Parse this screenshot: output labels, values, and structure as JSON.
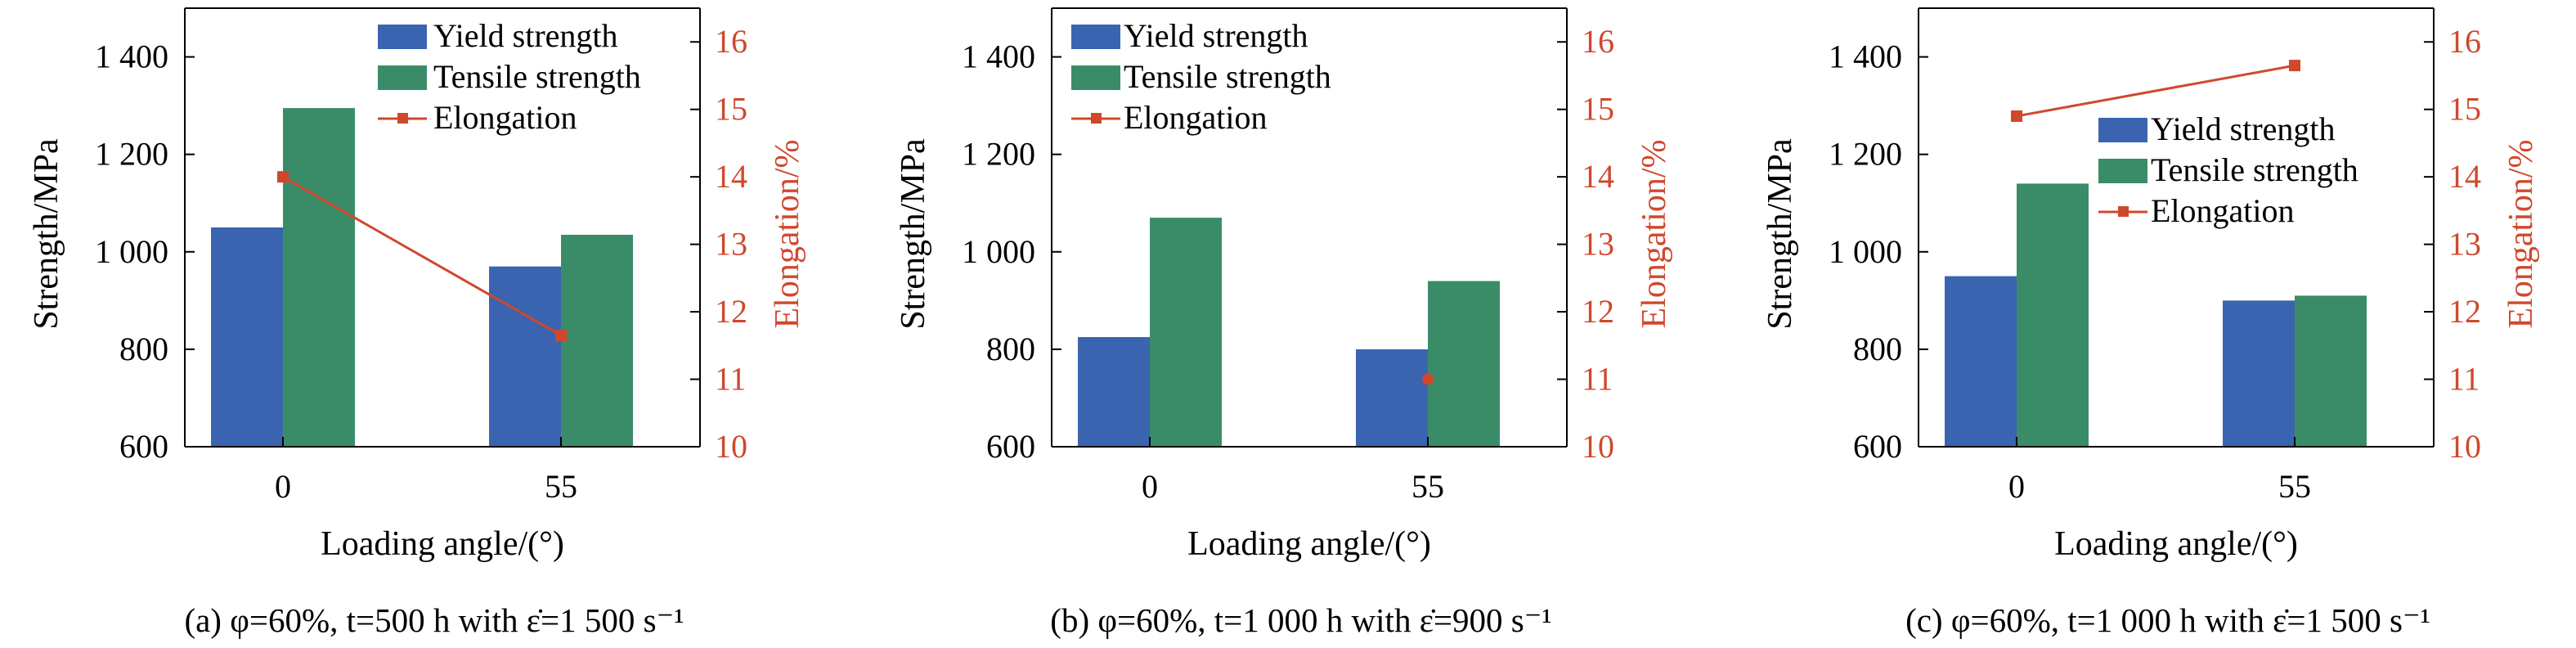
{
  "colors": {
    "yield": "#3a64b0",
    "tensile": "#3a8c69",
    "elongation": "#d0482c",
    "axis": "#000000",
    "right_axis": "#d0482c"
  },
  "chart_data": [
    {
      "type": "bar",
      "caption": "(a) φ=60%, t=500 h with ε̇=1 500 s⁻¹",
      "categories": [
        "0",
        "55"
      ],
      "xlabel": "Loading angle/(°)",
      "ylabel": "Strength/MPa",
      "y2label": "Elongation/%",
      "ylim": [
        600,
        1500
      ],
      "y2lim": [
        10,
        16.5
      ],
      "yticks": [
        600,
        800,
        1000,
        1200,
        1400
      ],
      "ytick_labels": [
        "600",
        "800",
        "1 000",
        "1 200",
        "1 400"
      ],
      "y2ticks": [
        10,
        11,
        12,
        13,
        14,
        15,
        16
      ],
      "y2tick_labels": [
        "10",
        "11",
        "12",
        "13",
        "14",
        "15",
        "16"
      ],
      "legend_position": "top-right",
      "series": [
        {
          "name": "Yield strength",
          "kind": "bar",
          "axis": "left",
          "values": [
            1050,
            970
          ]
        },
        {
          "name": "Tensile strength",
          "kind": "bar",
          "axis": "left",
          "values": [
            1295,
            1035
          ]
        },
        {
          "name": "Elongation",
          "kind": "line",
          "axis": "right",
          "values": [
            14.0,
            11.65
          ]
        }
      ]
    },
    {
      "type": "bar",
      "caption": "(b) φ=60%, t=1 000 h with ε̇=900 s⁻¹",
      "categories": [
        "0",
        "55"
      ],
      "xlabel": "Loading angle/(°)",
      "ylabel": "Strength/MPa",
      "y2label": "Elongation/%",
      "ylim": [
        600,
        1500
      ],
      "y2lim": [
        10,
        16.5
      ],
      "yticks": [
        600,
        800,
        1000,
        1200,
        1400
      ],
      "ytick_labels": [
        "600",
        "800",
        "1 000",
        "1 200",
        "1 400"
      ],
      "y2ticks": [
        10,
        11,
        12,
        13,
        14,
        15,
        16
      ],
      "y2tick_labels": [
        "10",
        "11",
        "12",
        "13",
        "14",
        "15",
        "16"
      ],
      "legend_position": "top-left",
      "series": [
        {
          "name": "Yield strength",
          "kind": "bar",
          "axis": "left",
          "values": [
            825,
            800
          ]
        },
        {
          "name": "Tensile strength",
          "kind": "bar",
          "axis": "left",
          "values": [
            1070,
            940
          ]
        },
        {
          "name": "Elongation",
          "kind": "line",
          "axis": "right",
          "values": [
            null,
            11.0
          ]
        }
      ]
    },
    {
      "type": "bar",
      "caption": "(c) φ=60%, t=1 000 h with ε̇=1 500 s⁻¹",
      "categories": [
        "0",
        "55"
      ],
      "xlabel": "Loading angle/(°)",
      "ylabel": "Strength/MPa",
      "y2label": "Elongation/%",
      "ylim": [
        600,
        1500
      ],
      "y2lim": [
        10,
        16.5
      ],
      "yticks": [
        600,
        800,
        1000,
        1200,
        1400
      ],
      "ytick_labels": [
        "600",
        "800",
        "1 000",
        "1 200",
        "1 400"
      ],
      "y2ticks": [
        10,
        11,
        12,
        13,
        14,
        15,
        16
      ],
      "y2tick_labels": [
        "10",
        "11",
        "12",
        "13",
        "14",
        "15",
        "16"
      ],
      "legend_position": "center-right",
      "series": [
        {
          "name": "Yield strength",
          "kind": "bar",
          "axis": "left",
          "values": [
            950,
            900
          ]
        },
        {
          "name": "Tensile strength",
          "kind": "bar",
          "axis": "left",
          "values": [
            1140,
            910
          ]
        },
        {
          "name": "Elongation",
          "kind": "line",
          "axis": "right",
          "values": [
            14.9,
            15.65
          ]
        }
      ]
    }
  ]
}
